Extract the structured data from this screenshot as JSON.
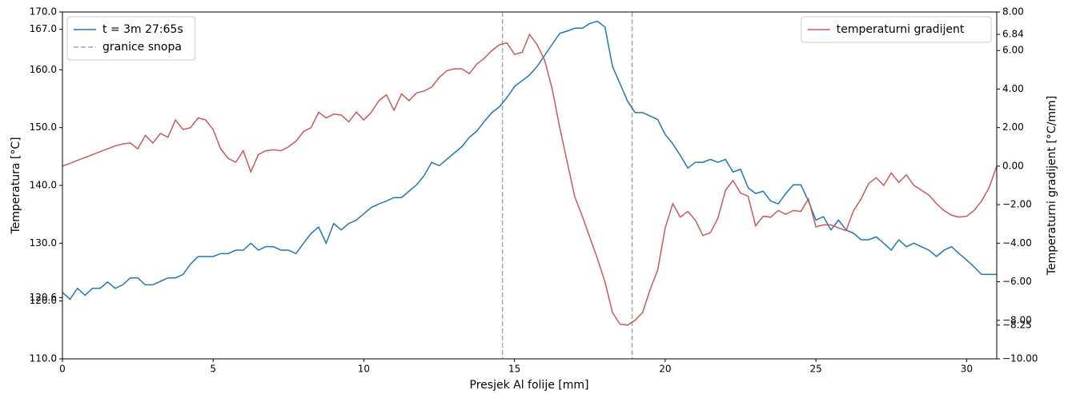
{
  "chart_data": {
    "type": "line",
    "xlabel": "Presjek Al folije [mm]",
    "ylabel": "Temperatura [°C]",
    "y2label": "Temperaturni gradijent [°C/mm]",
    "xlim": [
      0,
      31
    ],
    "xticks": [
      0,
      5,
      10,
      15,
      20,
      25,
      30
    ],
    "ylim": [
      110,
      170
    ],
    "yticks": [
      {
        "value": 110,
        "label": "110.0"
      },
      {
        "value": 120,
        "label": "120.0"
      },
      {
        "value": 120.6,
        "label": "120.6"
      },
      {
        "value": 130,
        "label": "130.0"
      },
      {
        "value": 140,
        "label": "140.0"
      },
      {
        "value": 150,
        "label": "150.0"
      },
      {
        "value": 160,
        "label": "160.0"
      },
      {
        "value": 167,
        "label": "167.0"
      },
      {
        "value": 170,
        "label": "170.0"
      }
    ],
    "y2lim": [
      -10,
      8
    ],
    "y2ticks": [
      {
        "value": -10,
        "label": "−10.00"
      },
      {
        "value": -8.25,
        "label": "−8.25"
      },
      {
        "value": -8,
        "label": "−8.00"
      },
      {
        "value": -6,
        "label": "−6.00"
      },
      {
        "value": -4,
        "label": "−4.00"
      },
      {
        "value": -2,
        "label": "−2.00"
      },
      {
        "value": 0,
        "label": "0.00"
      },
      {
        "value": 2,
        "label": "2.00"
      },
      {
        "value": 4,
        "label": "4.00"
      },
      {
        "value": 6,
        "label": "6.00"
      },
      {
        "value": 6.84,
        "label": "6.84"
      },
      {
        "value": 8,
        "label": "8.00"
      }
    ],
    "x": [
      0,
      0.25,
      0.5,
      0.75,
      1,
      1.25,
      1.5,
      1.75,
      2,
      2.25,
      2.5,
      2.75,
      3,
      3.25,
      3.5,
      3.75,
      4,
      4.25,
      4.5,
      4.75,
      5,
      5.25,
      5.5,
      5.75,
      6,
      6.25,
      6.5,
      6.75,
      7,
      7.25,
      7.5,
      7.75,
      8,
      8.25,
      8.5,
      8.75,
      9,
      9.25,
      9.5,
      9.75,
      10,
      10.25,
      10.5,
      10.75,
      11,
      11.25,
      11.5,
      11.75,
      12,
      12.25,
      12.5,
      12.75,
      13,
      13.25,
      13.5,
      13.75,
      14,
      14.25,
      14.5,
      14.75,
      15,
      15.25,
      15.5,
      15.75,
      16,
      16.25,
      16.5,
      16.75,
      17,
      17.25,
      17.5,
      17.75,
      18,
      18.25,
      18.5,
      18.75,
      19,
      19.25,
      19.5,
      19.75,
      20,
      20.25,
      20.5,
      20.75,
      21,
      21.25,
      21.5,
      21.75,
      22,
      22.25,
      22.5,
      22.75,
      23,
      23.25,
      23.5,
      23.75,
      24,
      24.25,
      24.5,
      24.75,
      25,
      25.25,
      25.5,
      25.75,
      26,
      26.25,
      26.5,
      26.75,
      27,
      27.25,
      27.5,
      27.75,
      28,
      28.25,
      28.5,
      28.75,
      29,
      29.25,
      29.5,
      29.75,
      30,
      30.25,
      30.5,
      30.75,
      31
    ],
    "series": [
      {
        "name": "t = 3m 27:65s",
        "color": "#1f77b4",
        "legend": "upper left",
        "values": [
          121.5,
          120.3,
          122.2,
          121.0,
          122.2,
          122.2,
          123.3,
          122.2,
          122.8,
          124.0,
          124.0,
          122.8,
          122.8,
          123.4,
          124.0,
          124.0,
          124.6,
          126.4,
          127.7,
          127.7,
          127.7,
          128.2,
          128.2,
          128.8,
          128.8,
          130.0,
          128.8,
          129.4,
          129.4,
          128.8,
          128.8,
          128.2,
          130.0,
          131.7,
          132.8,
          130.0,
          133.4,
          132.3,
          133.4,
          134.0,
          135.1,
          136.2,
          136.8,
          137.3,
          137.9,
          137.9,
          139.0,
          140.1,
          141.7,
          144.0,
          143.4,
          144.5,
          145.6,
          146.7,
          148.3,
          149.4,
          151.1,
          152.6,
          153.6,
          155.2,
          157.1,
          158.1,
          159.1,
          160.6,
          162.5,
          164.4,
          166.3,
          166.7,
          167.2,
          167.2,
          168.0,
          168.4,
          167.4,
          160.6,
          157.6,
          154.6,
          152.6,
          152.6,
          152.0,
          151.4,
          148.8,
          147.2,
          145.2,
          143.0,
          144.0,
          144.0,
          144.5,
          144.0,
          144.5,
          142.3,
          142.8,
          139.6,
          138.6,
          139.0,
          137.3,
          136.8,
          138.6,
          140.1,
          140.1,
          137.3,
          134.0,
          134.6,
          132.3,
          134.0,
          132.3,
          131.7,
          130.6,
          130.6,
          131.1,
          130.0,
          128.8,
          130.6,
          129.4,
          130.0,
          129.4,
          128.8,
          127.7,
          128.8,
          129.4,
          128.2,
          127.1,
          125.9,
          124.6,
          124.6,
          124.6
        ]
      },
      {
        "name": "temperaturni gradijent",
        "color": "#c85a5a",
        "axis": "y2",
        "legend": "upper right",
        "values": [
          0.0,
          0.15,
          0.3,
          0.45,
          0.6,
          0.75,
          0.9,
          1.05,
          1.15,
          1.2,
          0.9,
          1.6,
          1.2,
          1.7,
          1.5,
          2.4,
          1.9,
          2.0,
          2.5,
          2.4,
          1.9,
          0.9,
          0.4,
          0.2,
          0.8,
          -0.3,
          0.6,
          0.8,
          0.85,
          0.8,
          1.0,
          1.3,
          1.8,
          2.0,
          2.8,
          2.5,
          2.7,
          2.65,
          2.3,
          2.8,
          2.4,
          2.8,
          3.4,
          3.7,
          2.9,
          3.75,
          3.4,
          3.8,
          3.9,
          4.1,
          4.6,
          4.95,
          5.05,
          5.05,
          4.8,
          5.3,
          5.6,
          6.0,
          6.3,
          6.4,
          5.8,
          5.9,
          6.84,
          6.3,
          5.5,
          4.0,
          2.0,
          0.2,
          -1.6,
          -2.6,
          -3.7,
          -4.8,
          -6.0,
          -7.6,
          -8.2,
          -8.25,
          -8.0,
          -7.6,
          -6.4,
          -5.4,
          -3.2,
          -1.95,
          -2.65,
          -2.35,
          -2.8,
          -3.6,
          -3.45,
          -2.7,
          -1.25,
          -0.75,
          -1.4,
          -1.55,
          -3.1,
          -2.6,
          -2.65,
          -2.3,
          -2.5,
          -2.3,
          -2.35,
          -1.7,
          -3.15,
          -3.05,
          -3.05,
          -3.2,
          -3.35,
          -2.3,
          -1.7,
          -0.9,
          -0.6,
          -1.0,
          -0.35,
          -0.85,
          -0.45,
          -1.0,
          -1.25,
          -1.5,
          -1.95,
          -2.3,
          -2.55,
          -2.65,
          -2.6,
          -2.3,
          -1.8,
          -1.1,
          0.0
        ]
      }
    ],
    "vlines": {
      "name": "granice snopa",
      "color": "#a6a6a6",
      "legend": "upper left",
      "values": [
        14.6,
        18.9
      ]
    }
  }
}
